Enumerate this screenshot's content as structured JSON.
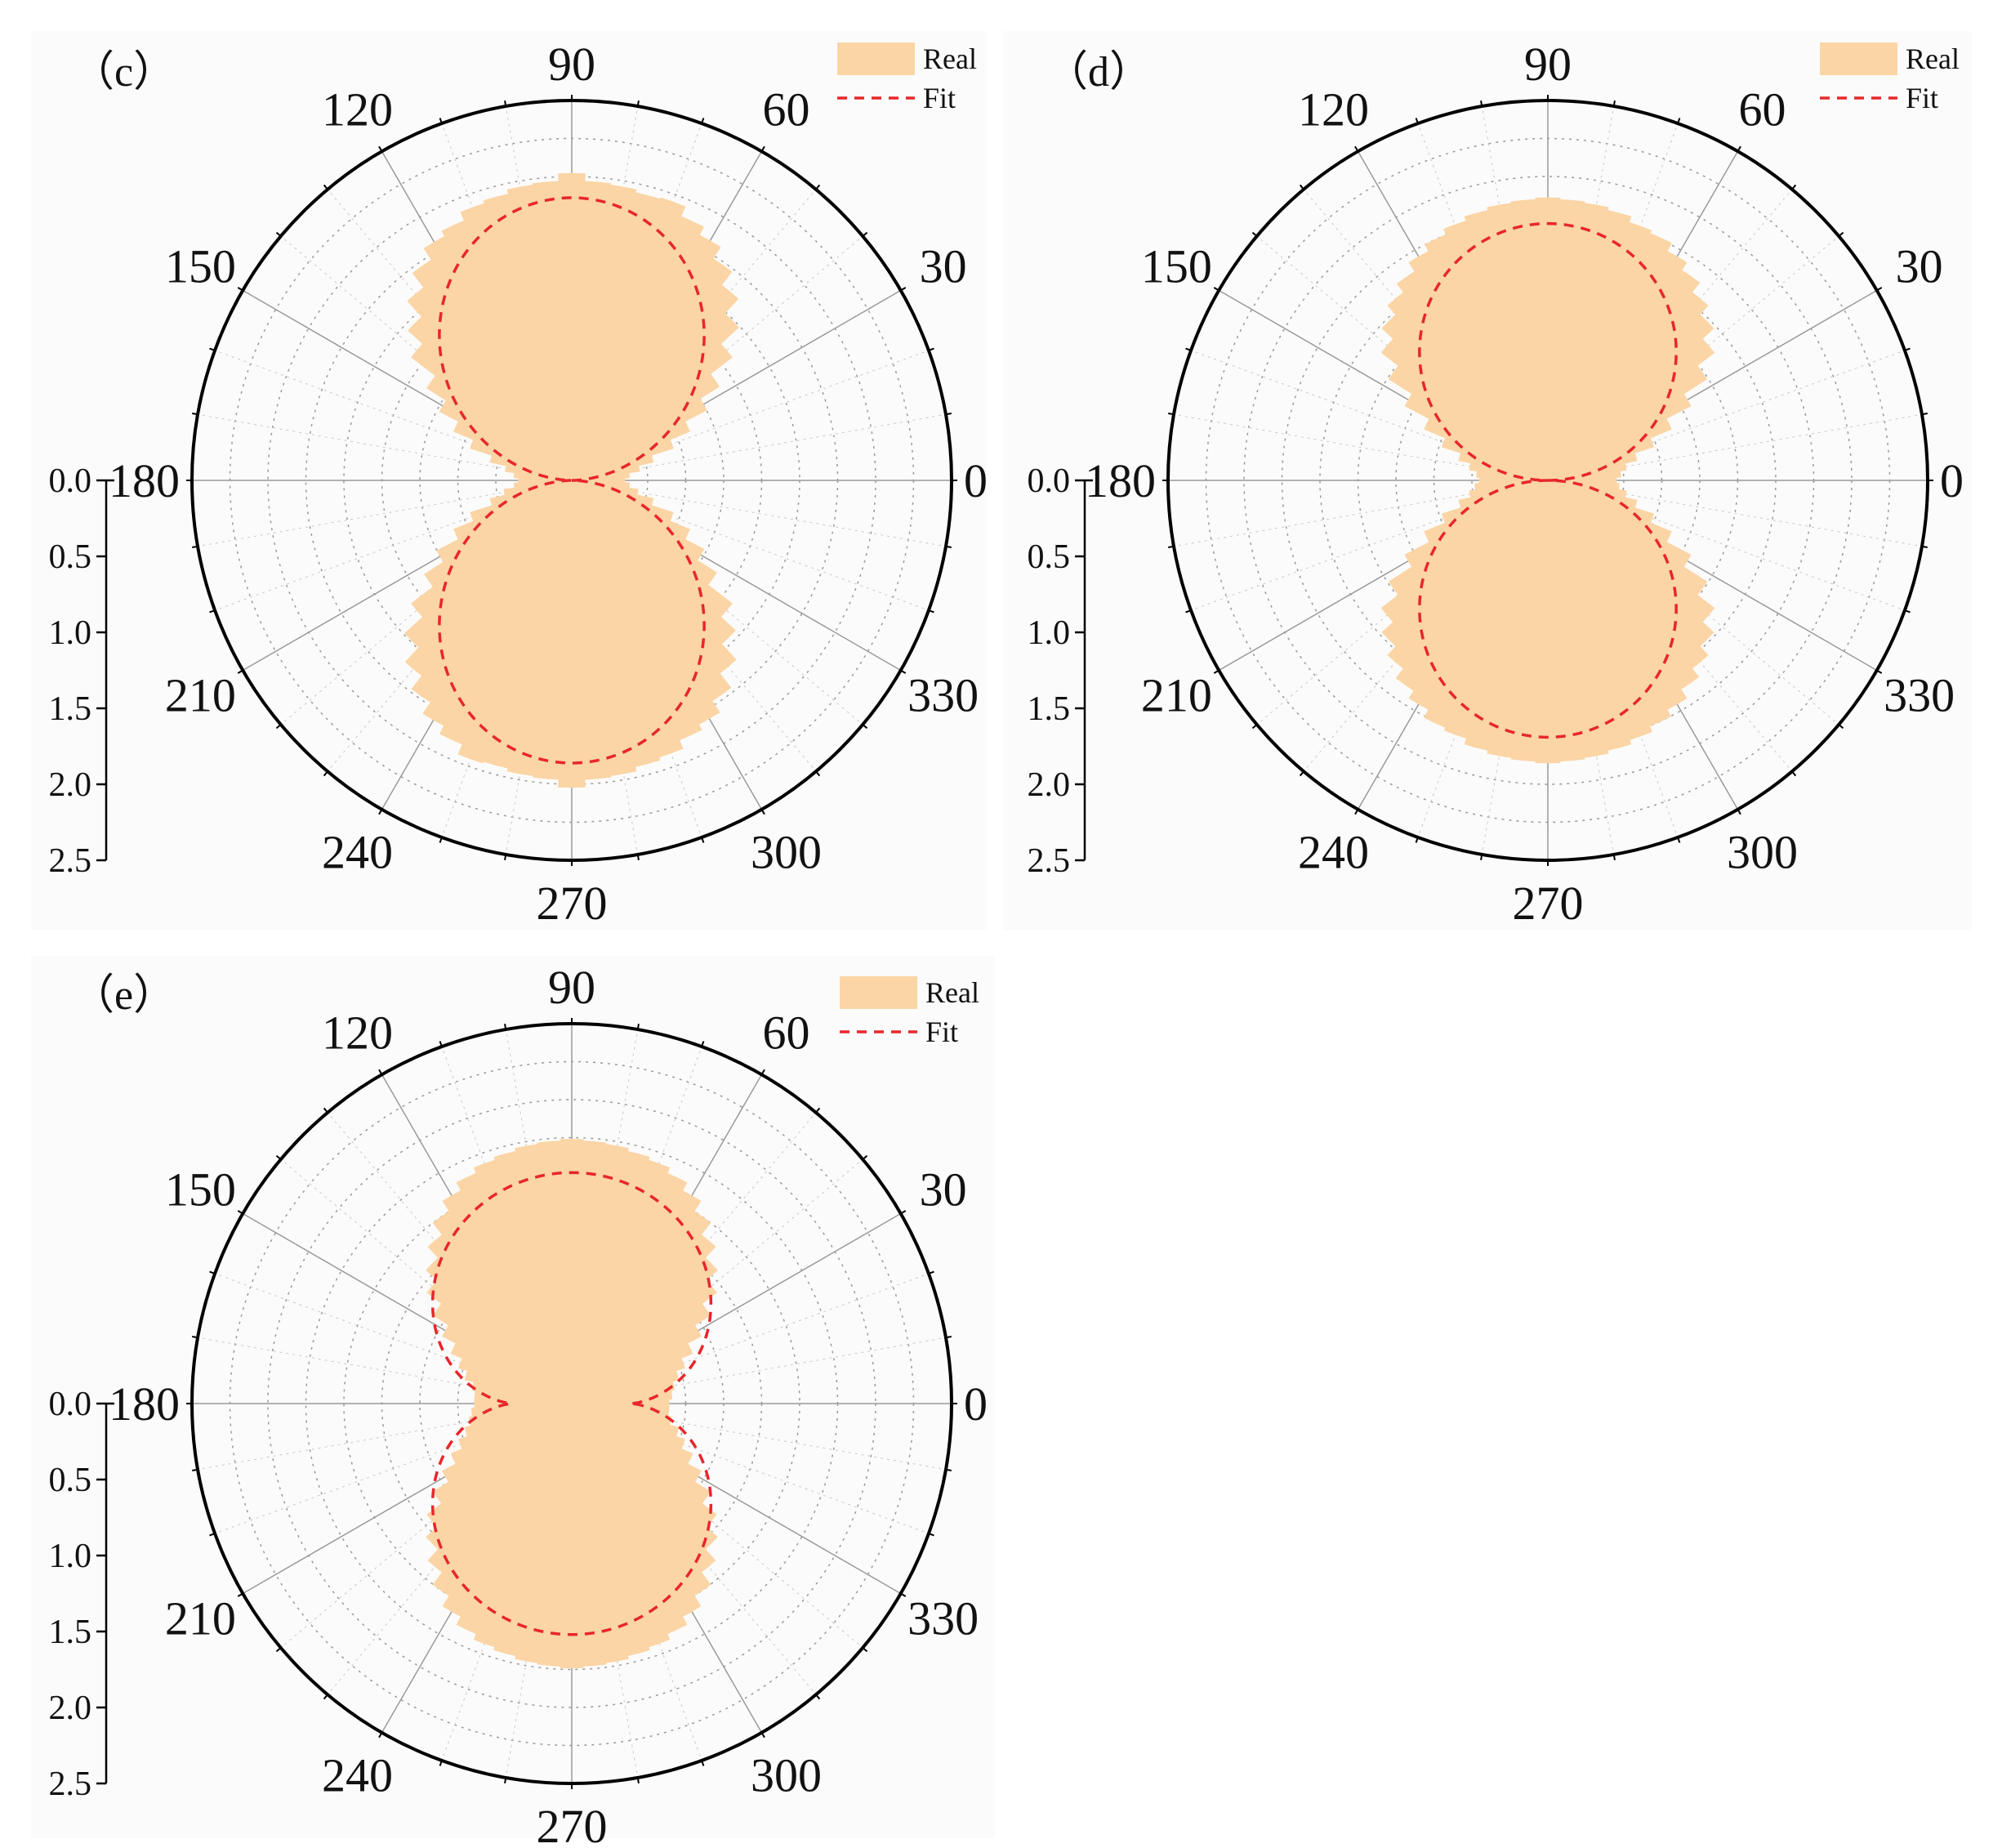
{
  "colors": {
    "real": "#fbd5a5",
    "fit": "#e8262b",
    "axis": "#000000"
  },
  "chart_data": [
    {
      "type": "polar-bar",
      "panel_label": "（c）",
      "angle_ticks": [
        "0",
        "30",
        "60",
        "90",
        "120",
        "150",
        "180",
        "210",
        "240",
        "270",
        "300",
        "330"
      ],
      "radial_ticks": [
        "0.0",
        "0.5",
        "1.0",
        "1.5",
        "2.0",
        "2.5"
      ],
      "rlim": [
        0,
        2.5
      ],
      "legend": {
        "real": "Real",
        "fit": "Fit",
        "position": "top-right"
      },
      "angles_deg": [
        0,
        5,
        10,
        15,
        20,
        25,
        30,
        35,
        40,
        45,
        50,
        55,
        60,
        65,
        70,
        75,
        80,
        85,
        90,
        95,
        100,
        105,
        110,
        115,
        120,
        125,
        130,
        135,
        140,
        145,
        150,
        155,
        160,
        165,
        170,
        175
      ],
      "real": [
        0.35,
        0.38,
        0.45,
        0.55,
        0.7,
        0.84,
        1.0,
        1.15,
        1.33,
        1.49,
        1.62,
        1.73,
        1.82,
        1.88,
        1.95,
        1.94,
        1.96,
        1.97,
        2.02,
        1.97,
        1.96,
        1.93,
        1.91,
        1.85,
        1.81,
        1.72,
        1.6,
        1.46,
        1.33,
        1.13,
        0.98,
        0.84,
        0.7,
        0.55,
        0.44,
        0.38
      ],
      "fit": {
        "amplitude": 1.86,
        "exponent": 1.2,
        "floor": 0.0,
        "mode": "power"
      }
    },
    {
      "type": "polar-bar",
      "panel_label": "（d）",
      "angle_ticks": [
        "0",
        "30",
        "60",
        "90",
        "120",
        "150",
        "180",
        "210",
        "240",
        "270",
        "300",
        "330"
      ],
      "radial_ticks": [
        "0.0",
        "0.5",
        "1.0",
        "1.5",
        "2.0",
        "2.5"
      ],
      "rlim": [
        0,
        2.5
      ],
      "legend": {
        "real": "Real",
        "fit": "Fit",
        "position": "top-right"
      },
      "angles_deg": [
        0,
        5,
        10,
        15,
        20,
        25,
        30,
        35,
        40,
        45,
        50,
        55,
        60,
        65,
        70,
        75,
        80,
        85,
        90,
        95,
        100,
        105,
        110,
        115,
        120,
        125,
        130,
        135,
        140,
        145,
        150,
        155,
        160,
        165,
        170,
        175
      ],
      "real": [
        0.45,
        0.48,
        0.52,
        0.6,
        0.73,
        0.88,
        1.06,
        1.24,
        1.38,
        1.48,
        1.56,
        1.64,
        1.7,
        1.76,
        1.78,
        1.82,
        1.84,
        1.85,
        1.86,
        1.85,
        1.84,
        1.82,
        1.79,
        1.75,
        1.7,
        1.63,
        1.56,
        1.48,
        1.38,
        1.24,
        1.06,
        0.88,
        0.73,
        0.6,
        0.52,
        0.47
      ],
      "fit": {
        "amplitude": 1.69,
        "exponent": 1.0,
        "floor": 0.0,
        "mode": "power"
      }
    },
    {
      "type": "polar-bar",
      "panel_label": "（e）",
      "angle_ticks": [
        "0",
        "30",
        "60",
        "90",
        "120",
        "150",
        "180",
        "210",
        "240",
        "270",
        "300",
        "330"
      ],
      "radial_ticks": [
        "0.0",
        "0.5",
        "1.0",
        "1.5",
        "2.0",
        "2.5"
      ],
      "rlim": [
        0,
        2.5
      ],
      "legend": {
        "real": "Real",
        "fit": "Fit",
        "position": "top-right"
      },
      "angles_deg": [
        0,
        5,
        10,
        15,
        20,
        25,
        30,
        35,
        40,
        45,
        50,
        55,
        60,
        65,
        70,
        75,
        80,
        85,
        90,
        95,
        100,
        105,
        110,
        115,
        120,
        125,
        130,
        135,
        140,
        145,
        150,
        155,
        160,
        165,
        170,
        175
      ],
      "real": [
        0.64,
        0.66,
        0.68,
        0.72,
        0.78,
        0.86,
        0.96,
        1.08,
        1.2,
        1.3,
        1.4,
        1.5,
        1.58,
        1.64,
        1.68,
        1.7,
        1.72,
        1.73,
        1.74,
        1.73,
        1.72,
        1.7,
        1.68,
        1.64,
        1.58,
        1.5,
        1.4,
        1.3,
        1.2,
        1.08,
        0.96,
        0.86,
        0.78,
        0.72,
        0.66,
        0.64
      ],
      "fit": {
        "amplitude": 1.52,
        "exponent": 0.8,
        "floor": 0.4,
        "mode": "power"
      }
    }
  ]
}
